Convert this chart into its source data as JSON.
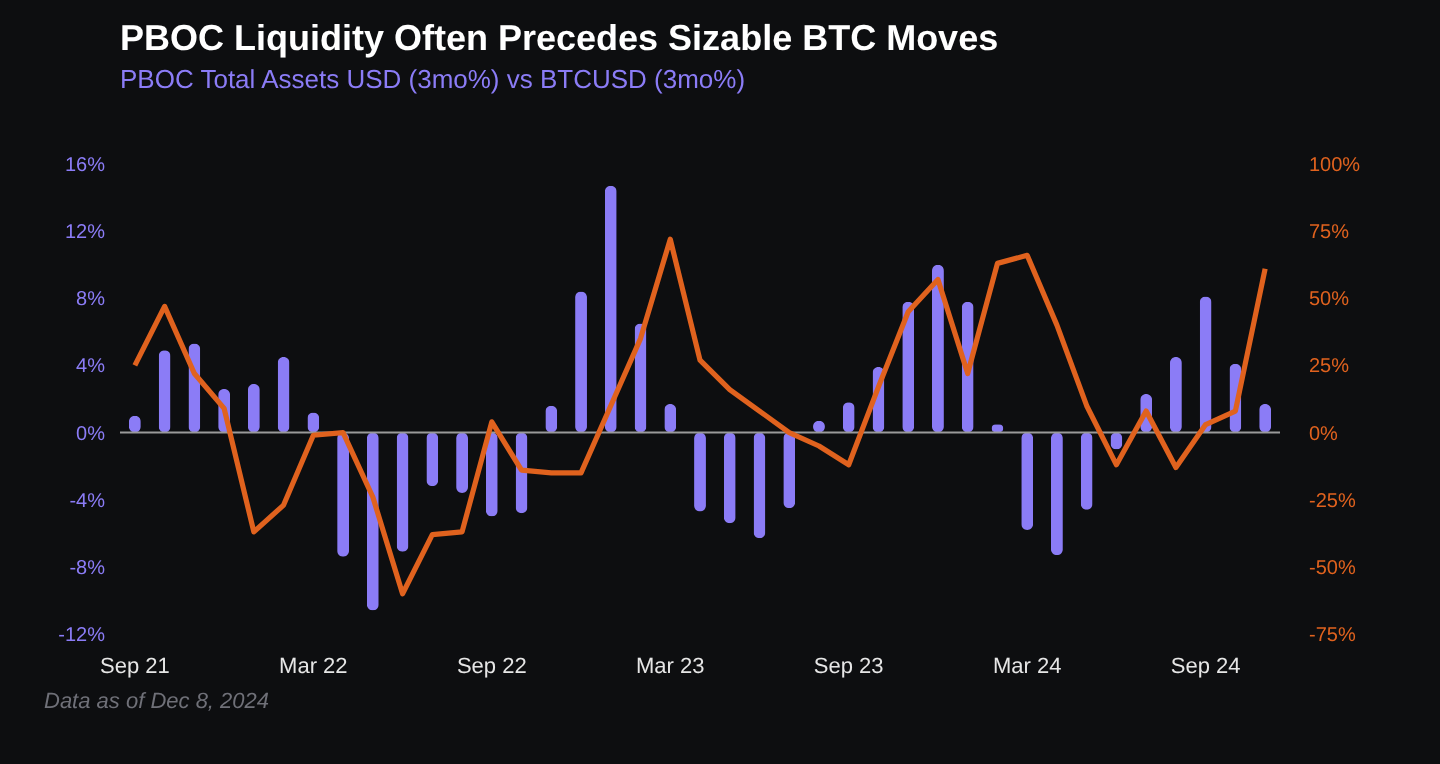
{
  "chart_data": {
    "type": "bar",
    "title": "PBOC Liquidity Often Precedes Sizable BTC Moves",
    "subtitle": "PBOC Total Assets USD (3mo%) vs BTCUSD (3mo%)",
    "categories": [
      "Sep 21",
      null,
      null,
      null,
      null,
      null,
      "Mar 22",
      null,
      null,
      null,
      null,
      null,
      "Sep 22",
      null,
      null,
      null,
      null,
      null,
      "Mar 23",
      null,
      null,
      null,
      null,
      null,
      "Sep 23",
      null,
      null,
      null,
      null,
      null,
      "Mar 24",
      null,
      null,
      null,
      null,
      null,
      "Sep 24",
      null,
      null
    ],
    "series": [
      {
        "color": "#8b7cf6",
        "values": [
          1.0,
          4.9,
          5.3,
          2.6,
          2.9,
          4.5,
          1.2,
          -7.4,
          -10.6,
          -7.1,
          -3.2,
          -3.6,
          -5.0,
          -4.8,
          1.6,
          8.4,
          14.7,
          6.5,
          1.7,
          -4.7,
          -5.4,
          -6.3,
          -4.5,
          0.7,
          1.8,
          3.9,
          7.8,
          10.0,
          7.8,
          0.5,
          -5.8,
          -7.3,
          -4.6,
          -1.0,
          2.3,
          4.5,
          8.1,
          4.1,
          1.7
        ]
      },
      {
        "type": "line",
        "axis": "y2",
        "color": "#e0621e",
        "values": [
          25,
          47,
          22,
          9,
          -37,
          -27,
          -1,
          0,
          -24,
          -60,
          -38,
          -37,
          4,
          -14,
          -15,
          -15,
          10,
          35,
          72,
          27,
          16,
          8,
          0,
          -5,
          -12,
          17,
          45,
          57,
          22,
          63,
          66,
          40,
          10,
          -12,
          8,
          -13,
          3,
          8,
          61
        ]
      }
    ],
    "ylim": [
      -12,
      16
    ],
    "yticks": [
      {
        "value": -12,
        "label": "-12%"
      },
      {
        "value": -8,
        "label": "-8%"
      },
      {
        "value": -4,
        "label": "-4%"
      },
      {
        "value": 0,
        "label": "0%"
      },
      {
        "value": 4,
        "label": "4%"
      },
      {
        "value": 8,
        "label": "8%"
      },
      {
        "value": 12,
        "label": "12%"
      },
      {
        "value": 16,
        "label": "16%"
      }
    ],
    "y2lim": [
      -75,
      100
    ],
    "y2ticks": [
      {
        "value": -75,
        "label": "-75%"
      },
      {
        "value": -50,
        "label": "-50%"
      },
      {
        "value": -25,
        "label": "-25%"
      },
      {
        "value": 0,
        "label": "0%"
      },
      {
        "value": 25,
        "label": "25%"
      },
      {
        "value": 50,
        "label": "50%"
      },
      {
        "value": 75,
        "label": "75%"
      },
      {
        "value": 100,
        "label": "100%"
      }
    ],
    "ref_lines": [
      {
        "axis": "y",
        "value": 0,
        "color": "#9a9a9a"
      }
    ],
    "annotations": [
      "Data as of Dec 8, 2024"
    ]
  }
}
